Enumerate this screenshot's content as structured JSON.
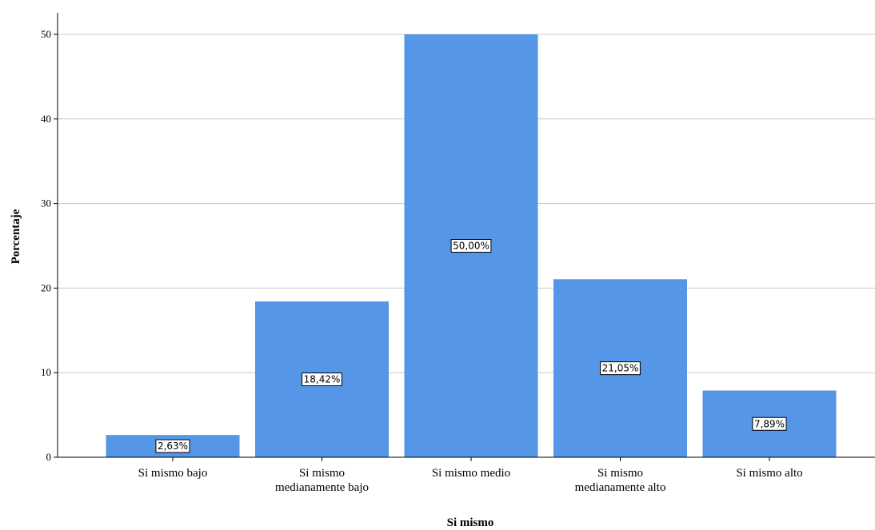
{
  "chart_data": {
    "type": "bar",
    "categories": [
      [
        "Si mismo bajo"
      ],
      [
        "Si mismo",
        "medianamente bajo"
      ],
      [
        "Si mismo medio"
      ],
      [
        "Si mismo",
        "medianamente alto"
      ],
      [
        "Si mismo alto"
      ]
    ],
    "values": [
      2.63,
      18.42,
      50.0,
      21.05,
      7.89
    ],
    "data_labels": [
      "2,63%",
      "18,42%",
      "50,00%",
      "21,05%",
      "7,89%"
    ],
    "xlabel": "Si mismo",
    "ylabel": "Porcentaje",
    "ylim": [
      0,
      50
    ],
    "yticks": [
      0,
      10,
      20,
      30,
      40,
      50
    ],
    "grid": true,
    "bar_color": "#5596e6"
  }
}
